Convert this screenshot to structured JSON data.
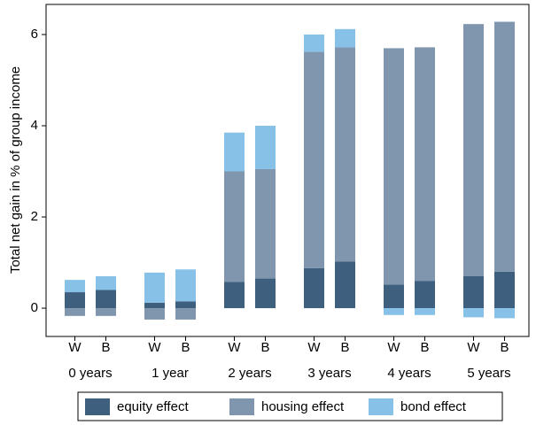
{
  "chart_data": {
    "type": "stacked_bar",
    "y_label": "Total net gain in % of group income",
    "groups": [
      "0 years",
      "1 year",
      "2 years",
      "3 years",
      "4 years",
      "5 years"
    ],
    "categories": [
      "W",
      "B",
      "W",
      "B",
      "W",
      "B",
      "W",
      "B",
      "W",
      "B",
      "W",
      "B"
    ],
    "series": [
      {
        "name": "equity effect",
        "color": "#3e5f7e",
        "values": [
          0.35,
          0.4,
          0.12,
          0.15,
          0.58,
          0.65,
          0.88,
          1.02,
          0.52,
          0.6,
          0.7,
          0.8
        ]
      },
      {
        "name": "housing effect",
        "color": "#7f96ae",
        "values": [
          -0.17,
          -0.17,
          -0.25,
          -0.25,
          2.42,
          2.4,
          4.74,
          4.7,
          5.18,
          5.12,
          5.53,
          5.48
        ]
      },
      {
        "name": "bond effect",
        "color": "#87c1e8",
        "values": [
          0.27,
          0.3,
          0.66,
          0.7,
          0.85,
          0.95,
          0.38,
          0.4,
          -0.15,
          -0.15,
          -0.2,
          -0.22
        ]
      }
    ],
    "ylim": [
      -0.62,
      6.66
    ],
    "yticks": [
      0,
      2,
      4,
      6
    ],
    "grid": false
  }
}
